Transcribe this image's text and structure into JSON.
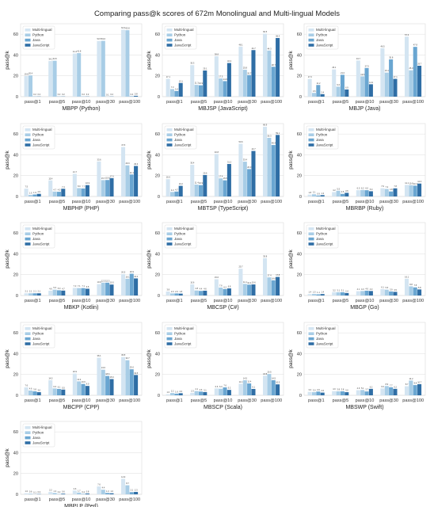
{
  "figure_title": "Comparing pass@k scores of 672m Monolingual and Multi-lingual Models",
  "chart_data": [
    {
      "type": "bar",
      "title": "",
      "xlabel": "MBPP (Python)",
      "ylabel": "pass@k",
      "ylim": [
        0,
        70
      ],
      "categories": [
        "pass@1",
        "pass@5",
        "pass@10",
        "pass@30",
        "pass@100"
      ],
      "legend": "top-left",
      "series": [
        {
          "name": "Multi-lingual",
          "values": [
            19.8,
            34.2,
            41.4,
            53.5,
            64.3
          ]
        },
        {
          "name": "Python",
          "values": [
            20.4,
            34.5,
            41.8,
            53.6,
            63.8
          ]
        },
        {
          "name": "Java",
          "values": [
            0.2,
            0.2,
            0.2,
            0.1,
            0.4
          ]
        },
        {
          "name": "JavaScript",
          "values": [
            0.2,
            0.2,
            0.2,
            0.2,
            0.8
          ]
        }
      ]
    },
    {
      "type": "bar",
      "title": "",
      "xlabel": "MBJSP (JavaScript)",
      "ylabel": "pass@k",
      "ylim": [
        0,
        70
      ],
      "categories": [
        "pass@1",
        "pass@5",
        "pass@10",
        "pass@30",
        "pass@100"
      ],
      "legend": "top-left",
      "series": [
        {
          "name": "Multi-lingual",
          "values": [
            17.1,
            30.3,
            38.8,
            48.1,
            60.5
          ]
        },
        {
          "name": "Python",
          "values": [
            7.3,
            11.3,
            17.5,
            25.8,
            44.3
          ]
        },
        {
          "name": "Java",
          "values": [
            5.4,
            10.9,
            14.9,
            20.7,
            28.7
          ]
        },
        {
          "name": "JavaScript",
          "values": [
            13.1,
            25.1,
            32.3,
            44.7,
            56.3
          ]
        }
      ]
    },
    {
      "type": "bar",
      "title": "",
      "xlabel": "MBJP (Java)",
      "ylabel": "pass@k",
      "ylim": [
        0,
        70
      ],
      "categories": [
        "pass@1",
        "pass@5",
        "pass@10",
        "pass@30",
        "pass@100"
      ],
      "legend": "top-left",
      "series": [
        {
          "name": "Multi-lingual",
          "values": [
            17.0,
            26.1,
            34.7,
            46.5,
            57.6
          ]
        },
        {
          "name": "Python",
          "values": [
            3.6,
            9.6,
            19.5,
            23.1,
            25.3
          ]
        },
        {
          "name": "Java",
          "values": [
            11.2,
            21.0,
            27.5,
            35.8,
            47.8
          ]
        },
        {
          "name": "JavaScript",
          "values": [
            2.4,
            6.9,
            11.9,
            17.1,
            29.7
          ]
        }
      ]
    },
    {
      "type": "bar",
      "title": "",
      "xlabel": "MBPHP (PHP)",
      "ylabel": "pass@k",
      "ylim": [
        0,
        70
      ],
      "categories": [
        "pass@1",
        "pass@5",
        "pass@10",
        "pass@30",
        "pass@100"
      ],
      "legend": "top-left",
      "series": [
        {
          "name": "Multi-lingual",
          "values": [
            7.5,
            15.4,
            21.7,
            33.6,
            47.5
          ]
        },
        {
          "name": "Python",
          "values": [
            1.5,
            4.7,
            8.0,
            15.7,
            29.9
          ]
        },
        {
          "name": "Java",
          "values": [
            1.9,
            4.5,
            7.7,
            15.8,
            21.1
          ]
        },
        {
          "name": "JavaScript",
          "values": [
            2.5,
            7.4,
            10.9,
            17.6,
            29.3
          ]
        }
      ]
    },
    {
      "type": "bar",
      "title": "",
      "xlabel": "MBTSP (TypeScript)",
      "ylabel": "pass@k",
      "ylim": [
        0,
        70
      ],
      "categories": [
        "pass@1",
        "pass@5",
        "pass@10",
        "pass@30",
        "pass@100"
      ],
      "legend": "top-left",
      "series": [
        {
          "name": "Multi-lingual",
          "values": [
            16.6,
            30.4,
            40.8,
            50.6,
            66.9
          ]
        },
        {
          "name": "Python",
          "values": [
            4.3,
            11.4,
            17.4,
            33.4,
            56.3
          ]
        },
        {
          "name": "Java",
          "values": [
            4.7,
            10.9,
            15.5,
            26.3,
            49.4
          ]
        },
        {
          "name": "JavaScript",
          "values": [
            10.2,
            20.6,
            31.2,
            43.7,
            59.1
          ]
        }
      ]
    },
    {
      "type": "bar",
      "title": "",
      "xlabel": "MBRBP (Ruby)",
      "ylabel": "pass@k",
      "ylim": [
        0,
        70
      ],
      "categories": [
        "pass@1",
        "pass@5",
        "pass@10",
        "pass@30",
        "pass@100"
      ],
      "legend": "top-left",
      "series": [
        {
          "name": "Multi-lingual",
          "values": [
            1.8,
            4.2,
            6.0,
            7.9,
            11.1
          ]
        },
        {
          "name": "Python",
          "values": [
            2.1,
            5.5,
            6.2,
            7.2,
            10.8
          ]
        },
        {
          "name": "Java",
          "values": [
            0.9,
            2.5,
            6.0,
            4.8,
            10.4
          ]
        },
        {
          "name": "JavaScript",
          "values": [
            1.3,
            3.5,
            5.0,
            7.8,
            12.4
          ]
        }
      ]
    },
    {
      "type": "bar",
      "title": "",
      "xlabel": "MBKP (Kotlin)",
      "ylabel": "pass@k",
      "ylim": [
        0,
        70
      ],
      "categories": [
        "pass@1",
        "pass@5",
        "pass@10",
        "pass@30",
        "pass@100"
      ],
      "legend": "top-left",
      "series": [
        {
          "name": "Multi-lingual",
          "values": [
            2.1,
            4.6,
            7.3,
            10.9,
            20.5
          ]
        },
        {
          "name": "Python",
          "values": [
            2.1,
            5.6,
            7.1,
            12.3,
            16.1
          ]
        },
        {
          "name": "Java",
          "values": [
            2.1,
            5.0,
            7.1,
            12.3,
            20.9
          ]
        },
        {
          "name": "JavaScript",
          "values": [
            2.1,
            4.7,
            6.5,
            10.5,
            16.4
          ]
        }
      ]
    },
    {
      "type": "bar",
      "title": "",
      "xlabel": "MBCSP (C#)",
      "ylabel": "pass@k",
      "ylim": [
        0,
        70
      ],
      "categories": [
        "pass@1",
        "pass@5",
        "pass@10",
        "pass@30",
        "pass@100"
      ],
      "legend": "top-left",
      "series": [
        {
          "name": "Multi-lingual",
          "values": [
            3.8,
            10.6,
            15.6,
            25.7,
            35.8
          ]
        },
        {
          "name": "Python",
          "values": [
            2.0,
            4.8,
            7.6,
            11.1,
            17.4
          ]
        },
        {
          "name": "Java",
          "values": [
            2.0,
            4.4,
            6.2,
            10.4,
            14.6
          ]
        },
        {
          "name": "JavaScript",
          "values": [
            1.8,
            4.6,
            6.8,
            10.6,
            17.8
          ]
        }
      ]
    },
    {
      "type": "bar",
      "title": "",
      "xlabel": "MBGP (Go)",
      "ylabel": "pass@k",
      "ylim": [
        0,
        70
      ],
      "categories": [
        "pass@1",
        "pass@5",
        "pass@10",
        "pass@30",
        "pass@100"
      ],
      "legend": "top-left",
      "series": [
        {
          "name": "Multi-lingual",
          "values": [
            1.4,
            3.2,
            4.1,
            6.1,
            16.1
          ]
        },
        {
          "name": "Python",
          "values": [
            1.5,
            3.1,
            4.3,
            5.6,
            8.8
          ]
        },
        {
          "name": "Java",
          "values": [
            1.1,
            3.1,
            4.6,
            3.9,
            7.8
          ]
        },
        {
          "name": "JavaScript",
          "values": [
            1.4,
            2.4,
            4.3,
            3.5,
            5.8
          ]
        }
      ]
    },
    {
      "type": "bar",
      "title": "",
      "xlabel": "MBCPP (CPP)",
      "ylabel": "pass@k",
      "ylim": [
        0,
        70
      ],
      "categories": [
        "pass@1",
        "pass@5",
        "pass@10",
        "pass@30",
        "pass@100"
      ],
      "legend": "top-left",
      "series": [
        {
          "name": "Multi-lingual",
          "values": [
            7.6,
            14.5,
            20.9,
            36.1,
            36.8
          ]
        },
        {
          "name": "Python",
          "values": [
            4.6,
            6.6,
            13.4,
            24.6,
            33.7
          ]
        },
        {
          "name": "Java",
          "values": [
            3.8,
            6.1,
            10.9,
            18.6,
            25.0
          ]
        },
        {
          "name": "JavaScript",
          "values": [
            3.0,
            5.5,
            9.0,
            15.6,
            19.5
          ]
        }
      ]
    },
    {
      "type": "bar",
      "title": "",
      "xlabel": "MBSCP (Scala)",
      "ylabel": "pass@k",
      "ylim": [
        0,
        70
      ],
      "categories": [
        "pass@1",
        "pass@5",
        "pass@10",
        "pass@30",
        "pass@100"
      ],
      "legend": "top-left",
      "series": [
        {
          "name": "Multi-lingual",
          "values": [
            1.0,
            2.3,
            6.6,
            11.1,
            18.8
          ]
        },
        {
          "name": "Python",
          "values": [
            2.2,
            4.1,
            6.3,
            14.5,
            20.5
          ]
        },
        {
          "name": "Java",
          "values": [
            1.6,
            3.6,
            7.6,
            11.4,
            14.5
          ]
        },
        {
          "name": "JavaScript",
          "values": [
            2.0,
            3.1,
            5.2,
            6.1,
            10.5
          ]
        }
      ]
    },
    {
      "type": "bar",
      "title": "",
      "xlabel": "MBSWP (Swift)",
      "ylabel": "pass@k",
      "ylim": [
        0,
        70
      ],
      "categories": [
        "pass@1",
        "pass@5",
        "pass@10",
        "pass@30",
        "pass@100"
      ],
      "legend": "top-left",
      "series": [
        {
          "name": "Multi-lingual",
          "values": [
            3.3,
            4.0,
            4.9,
            6.6,
            8.7
          ]
        },
        {
          "name": "Python",
          "values": [
            3.0,
            3.8,
            5.1,
            8.9,
            14.2
          ]
        },
        {
          "name": "Java",
          "values": [
            3.6,
            3.8,
            3.7,
            7.7,
            9.8
          ]
        },
        {
          "name": "JavaScript",
          "values": [
            2.6,
            3.0,
            6.2,
            6.2,
            10.7
          ]
        }
      ]
    },
    {
      "type": "bar",
      "title": "",
      "xlabel": "MBPLP (Perl)",
      "ylabel": "pass@k",
      "ylim": [
        0,
        70
      ],
      "categories": [
        "pass@1",
        "pass@5",
        "pass@10",
        "pass@30",
        "pass@100"
      ],
      "legend": "top-left",
      "series": [
        {
          "name": "Multi-lingual",
          "values": [
            1.0,
            2.2,
            3.6,
            7.6,
            14.9
          ]
        },
        {
          "name": "Python",
          "values": [
            0.6,
            1.3,
            1.7,
            4.4,
            8.7
          ]
        },
        {
          "name": "Java",
          "values": [
            0.1,
            0.2,
            0.4,
            1.3,
            2.1
          ]
        },
        {
          "name": "JavaScript",
          "values": [
            0.3,
            0.6,
            0.8,
            1.0,
            2.3
          ]
        }
      ]
    }
  ],
  "colors": [
    "#d4e5f2",
    "#a8cde6",
    "#6aa6d1",
    "#2f6ea5"
  ],
  "yticks": [
    0,
    20,
    40,
    60
  ]
}
